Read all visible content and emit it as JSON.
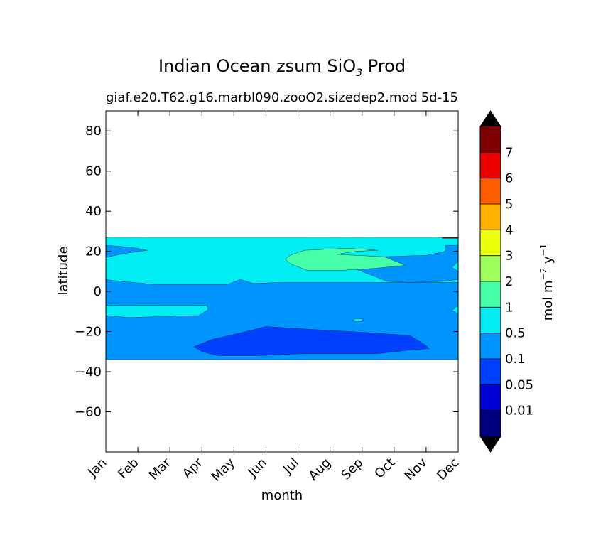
{
  "chart_data": {
    "type": "contourf",
    "title_main": "Indian Ocean zsum SiO",
    "title_sub3": "3",
    "title_end": " Prod",
    "subtitle_left": "giaf.e20.T62.g16.marbl090.zooO2.sizedep2.mod",
    "subtitle_right": "5d-15",
    "xlabel": "month",
    "ylabel": "latitude",
    "xticks": [
      "Jan",
      "Feb",
      "Mar",
      "Apr",
      "May",
      "Jun",
      "Jul",
      "Aug",
      "Sep",
      "Oct",
      "Nov",
      "Dec"
    ],
    "xlim": [
      0,
      11
    ],
    "ylim": [
      -80,
      90
    ],
    "yticks": [
      80,
      60,
      40,
      20,
      0,
      -20,
      -40,
      -60
    ],
    "ytick_labels": [
      "80",
      "60",
      "40",
      "20",
      "0",
      "−20",
      "−40",
      "−60"
    ],
    "data_lat_range": [
      -34,
      27
    ],
    "colorbar": {
      "label_main": "mol m",
      "label_exp1": "−2",
      "label_mid": " y",
      "label_exp2": "−1",
      "levels": [
        "0.01",
        "0.05",
        "0.1",
        "0.5",
        "1",
        "2",
        "3",
        "4",
        "5",
        "6",
        "7"
      ],
      "colors": [
        "#00007f",
        "#0000d6",
        "#0040ff",
        "#0094ff",
        "#00edf4",
        "#48ffa9",
        "#9cff5a",
        "#eaff0c",
        "#ffb100",
        "#ff5c00",
        "#ec0000",
        "#7f0000"
      ],
      "under_color": "#000000",
      "over_color": "#000000"
    },
    "regions": [
      {
        "level": "0.1-0.5",
        "color": "#0094ff",
        "polygon": [
          [
            0,
            -34
          ],
          [
            11,
            -34
          ],
          [
            11,
            27
          ],
          [
            0,
            27
          ]
        ]
      },
      {
        "level": "0.5-1",
        "color": "#00edf4",
        "polygon": [
          [
            0,
            27
          ],
          [
            11,
            27
          ],
          [
            11,
            23
          ],
          [
            10.6,
            23
          ],
          [
            10.6,
            20
          ],
          [
            10,
            18
          ],
          [
            9,
            17.5
          ],
          [
            8.2,
            17
          ],
          [
            7.6,
            15.5
          ],
          [
            7.4,
            13.5
          ],
          [
            7.5,
            13
          ],
          [
            8.8,
            5
          ],
          [
            9.5,
            4.5
          ],
          [
            10.5,
            5
          ],
          [
            11,
            6
          ],
          [
            11,
            10
          ],
          [
            10.8,
            12
          ],
          [
            11,
            15
          ],
          [
            11,
            4.5
          ],
          [
            5.5,
            4.5
          ],
          [
            4.6,
            4
          ],
          [
            4.2,
            6
          ],
          [
            3.8,
            3.5
          ],
          [
            1.5,
            3.5
          ],
          [
            0.2,
            5.5
          ],
          [
            0,
            6
          ],
          [
            0,
            17
          ],
          [
            0.6,
            19
          ],
          [
            1.3,
            20.5
          ],
          [
            0.8,
            22
          ],
          [
            0,
            23
          ]
        ]
      },
      {
        "level": "0.5-1 (south band)",
        "color": "#00edf4",
        "polygon": [
          [
            0,
            -7
          ],
          [
            3.15,
            -7
          ],
          [
            3.2,
            -9
          ],
          [
            2.9,
            -12
          ],
          [
            1.8,
            -12.5
          ],
          [
            0.7,
            -13
          ],
          [
            0,
            -12
          ]
        ]
      },
      {
        "level": "0.5-1 (small)",
        "color": "#00edf4",
        "polygon": [
          [
            7.8,
            -13.5
          ],
          [
            8.05,
            -13.8
          ],
          [
            7.95,
            -15
          ],
          [
            7.7,
            -14.6
          ]
        ]
      },
      {
        "level": "0.5-1 (east edge)",
        "color": "#00edf4",
        "polygon": [
          [
            11,
            -7
          ],
          [
            10.8,
            -9.5
          ],
          [
            11,
            -11
          ]
        ]
      },
      {
        "level": "1-2",
        "color": "#48ffa9",
        "polygon": [
          [
            5.75,
            18
          ],
          [
            6.2,
            20.5
          ],
          [
            7.5,
            21.5
          ],
          [
            8.1,
            21
          ],
          [
            8.5,
            20.5
          ],
          [
            7.8,
            20
          ],
          [
            7.2,
            18.5
          ],
          [
            8.7,
            17.3
          ],
          [
            9.35,
            13
          ],
          [
            8.4,
            11.5
          ],
          [
            7.3,
            10.5
          ],
          [
            6.3,
            10.5
          ],
          [
            5.8,
            13.5
          ],
          [
            5.6,
            16
          ]
        ]
      },
      {
        "level": "0.05-0.1",
        "color": "#0040ff",
        "polygon": [
          [
            2.75,
            -27.5
          ],
          [
            3.3,
            -24
          ],
          [
            4.5,
            -19.5
          ],
          [
            5,
            -17.5
          ],
          [
            6,
            -18.5
          ],
          [
            8.2,
            -20.5
          ],
          [
            9.5,
            -22
          ],
          [
            10,
            -27
          ],
          [
            10.1,
            -28.5
          ],
          [
            9.6,
            -29
          ],
          [
            8.5,
            -31
          ],
          [
            6.2,
            -31
          ],
          [
            4.8,
            -32
          ],
          [
            3.5,
            -32
          ],
          [
            3,
            -30
          ]
        ]
      },
      {
        "level": "above 7 (north edge)",
        "color": "#7f0000",
        "polygon": [
          [
            10.5,
            26.5
          ],
          [
            11,
            26.5
          ],
          [
            11,
            27
          ],
          [
            10.5,
            27
          ]
        ]
      }
    ]
  }
}
